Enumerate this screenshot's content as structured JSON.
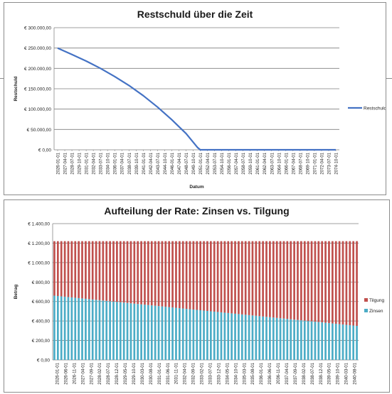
{
  "colors": {
    "line": "#4472C4",
    "tilgung": "#C0504D",
    "zinsen": "#4BACC6",
    "grid": "#7f7f7f"
  },
  "chart_data": [
    {
      "type": "line",
      "title": "Restschuld über die Zeit",
      "xlabel": "Datum",
      "ylabel": "Restschuld",
      "legend": "right",
      "grid": true,
      "ylim": [
        0,
        300000
      ],
      "y_ticks": [
        "€ 0,00",
        "€ 50.000,00",
        "€ 100.000,00",
        "€ 150.000,00",
        "€ 200.000,00",
        "€ 250.000,00",
        "€ 300.000,00"
      ],
      "x_ticks": [
        "2026-01-01",
        "2027-04-01",
        "2028-07-01",
        "2029-10-01",
        "2031-01-01",
        "2032-04-01",
        "2033-07-01",
        "2034-10-01",
        "2036-01-01",
        "2037-04-01",
        "2038-07-01",
        "2039-10-01",
        "2041-01-01",
        "2042-04-01",
        "2043-07-01",
        "2044-10-01",
        "2046-01-01",
        "2047-04-01",
        "2048-07-01",
        "2049-10-01",
        "2051-01-01",
        "2052-04-01",
        "2053-07-01",
        "2054-10-01",
        "2056-01-01",
        "2057-04-01",
        "2058-07-01",
        "2059-10-01",
        "2061-01-01",
        "2062-04-01",
        "2063-07-01",
        "2064-10-01",
        "2066-01-01",
        "2067-04-01",
        "2068-07-01",
        "2069-10-01",
        "2071-01-01",
        "2072-04-01",
        "2073-07-01",
        "2074-10-01"
      ],
      "series": [
        {
          "name": "Restschuld",
          "x": [
            "2026-01-01",
            "2028-07-01",
            "2031-01-01",
            "2033-07-01",
            "2036-01-01",
            "2038-07-01",
            "2041-01-01",
            "2043-07-01",
            "2046-01-01",
            "2048-07-01",
            "2050-07-01",
            "2051-01-01",
            "2074-10-01"
          ],
          "values": [
            250000,
            234000,
            218000,
            200000,
            180000,
            158000,
            133000,
            105000,
            74000,
            40000,
            6000,
            0,
            0
          ]
        }
      ]
    },
    {
      "type": "bar",
      "stacked": true,
      "title": "Aufteilung der Rate: Zinsen vs. Tilgung",
      "xlabel": "",
      "ylabel": "Betrag",
      "legend": "right",
      "grid": true,
      "ylim": [
        0,
        1400
      ],
      "y_ticks": [
        "€ 0,00",
        "€ 200,00",
        "€ 400,00",
        "€ 600,00",
        "€ 800,00",
        "€ 1.000,00",
        "€ 1.200,00",
        "€ 1.400,00"
      ],
      "x_ticks": [
        "2026-01-01",
        "2026-06-01",
        "2026-11-01",
        "2027-04-01",
        "2027-09-01",
        "2028-02-01",
        "2028-07-01",
        "2028-12-01",
        "2029-05-01",
        "2029-10-01",
        "2030-03-01",
        "2030-08-01",
        "2031-01-01",
        "2031-06-01",
        "2031-11-01",
        "2032-04-01",
        "2032-09-01",
        "2033-02-01",
        "2033-07-01",
        "2033-12-01",
        "2034-05-01",
        "2034-10-01",
        "2035-03-01",
        "2035-08-01",
        "2036-01-01",
        "2036-06-01",
        "2036-11-01",
        "2037-04-01",
        "2037-09-01",
        "2038-02-01",
        "2038-07-01",
        "2038-12-01",
        "2039-05-01",
        "2039-10-01",
        "2040-03-01",
        "2040-08-01"
      ],
      "rate": 1220,
      "zinsen_start": 660,
      "zinsen_end": 350,
      "bar_count": 88,
      "series": [
        {
          "name": "Tilgung"
        },
        {
          "name": "Zinsen"
        }
      ]
    }
  ]
}
